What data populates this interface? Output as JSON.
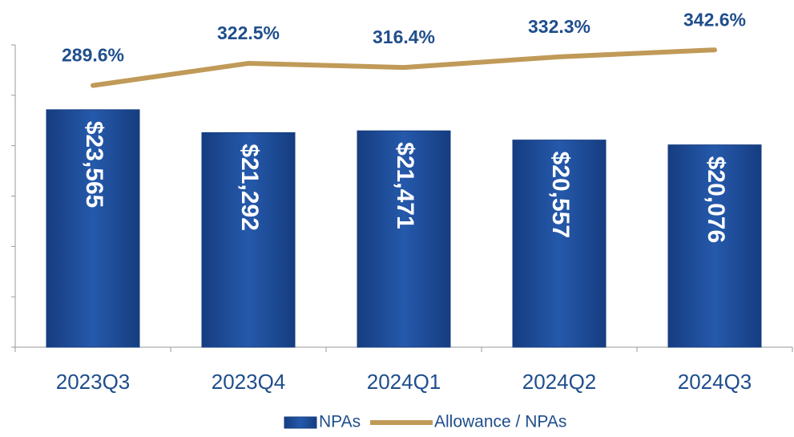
{
  "chart_data": {
    "type": "bar_line",
    "categories": [
      "2023Q3",
      "2023Q4",
      "2024Q1",
      "2024Q2",
      "2024Q3"
    ],
    "series": [
      {
        "name": "NPAs",
        "color": "#1f4e9c",
        "values": [
          23565,
          21292,
          21471,
          20557,
          20076
        ],
        "value_labels": [
          "$23,565",
          "$21,292",
          "$21,471",
          "$20,557",
          "$20,076"
        ]
      },
      {
        "name": "Allowance / NPAs",
        "color": "#c09a58",
        "axis": "y2",
        "values": [
          289.6,
          322.5,
          316.4,
          332.3,
          342.6
        ],
        "value_labels": [
          "289.6%",
          "322.5%",
          "316.4%",
          "332.3%",
          "342.6%"
        ]
      }
    ],
    "ylim": [
      0,
      30000
    ],
    "yticks": [
      0,
      5000,
      10000,
      15000,
      20000,
      25000,
      30000
    ],
    "y2lim": [
      -100,
      350
    ]
  }
}
